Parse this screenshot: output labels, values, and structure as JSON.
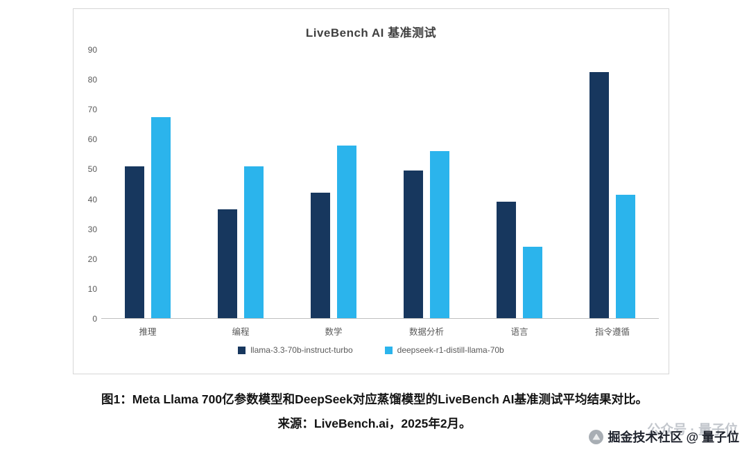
{
  "chart_data": {
    "type": "bar",
    "title": "LiveBench AI 基准测试",
    "categories": [
      "推理",
      "编程",
      "数学",
      "数据分析",
      "语言",
      "指令遵循"
    ],
    "series": [
      {
        "name": "llama-3.3-70b-instruct-turbo",
        "color": "#17375e",
        "values": [
          51,
          36.5,
          42,
          49.5,
          39,
          82.5
        ]
      },
      {
        "name": "deepseek-r1-distill-llama-70b",
        "color": "#2bb4ec",
        "values": [
          67.5,
          51,
          58,
          56,
          24,
          41.5
        ]
      }
    ],
    "xlabel": "",
    "ylabel": "",
    "ylim": [
      0,
      90
    ],
    "yticks": [
      0,
      10,
      20,
      30,
      40,
      50,
      60,
      70,
      80,
      90
    ],
    "grid": false,
    "legend_position": "bottom"
  },
  "caption": {
    "line1": "图1：Meta Llama 700亿参数模型和DeepSeek对应蒸馏模型的LiveBench AI基准测试平均结果对比。",
    "line2": "来源：LiveBench.ai，2025年2月。"
  },
  "watermark": {
    "ghost": "公众号 · 量子位",
    "text": "掘金技术社区 @ 量子位"
  }
}
